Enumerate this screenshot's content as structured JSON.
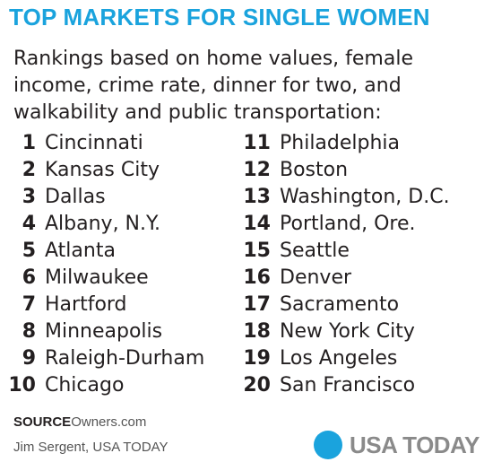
{
  "title": "TOP MARKETS FOR SINGLE WOMEN",
  "subtitle": "Rankings based on home values, female income, crime rate, dinner for two, and walkability and public transportation:",
  "rankings_left": [
    {
      "rank": "1",
      "city": "Cincinnati"
    },
    {
      "rank": "2",
      "city": "Kansas City"
    },
    {
      "rank": "3",
      "city": "Dallas"
    },
    {
      "rank": "4",
      "city": "Albany, N.Y."
    },
    {
      "rank": "5",
      "city": "Atlanta"
    },
    {
      "rank": "6",
      "city": "Milwaukee"
    },
    {
      "rank": "7",
      "city": "Hartford"
    },
    {
      "rank": "8",
      "city": "Minneapolis"
    },
    {
      "rank": "9",
      "city": "Raleigh-Durham"
    },
    {
      "rank": "10",
      "city": "Chicago"
    }
  ],
  "rankings_right": [
    {
      "rank": "11",
      "city": "Philadelphia"
    },
    {
      "rank": "12",
      "city": "Boston"
    },
    {
      "rank": "13",
      "city": "Washington, D.C."
    },
    {
      "rank": "14",
      "city": "Portland, Ore."
    },
    {
      "rank": "15",
      "city": "Seattle"
    },
    {
      "rank": "16",
      "city": "Denver"
    },
    {
      "rank": "17",
      "city": "Sacramento"
    },
    {
      "rank": "18",
      "city": "New York City"
    },
    {
      "rank": "19",
      "city": "Los Angeles"
    },
    {
      "rank": "20",
      "city": "San Francisco"
    }
  ],
  "source": {
    "label": "SOURCE",
    "text": "Owners.com"
  },
  "credit": "Jim Sergent, USA TODAY",
  "logo": {
    "text": "USA TODAY",
    "icon": "usa-today-dot-icon",
    "dot_color": "#1aa3dd"
  },
  "colors": {
    "accent": "#1aa3dd",
    "text": "#231f20",
    "logo_text": "#8a8a8a"
  }
}
